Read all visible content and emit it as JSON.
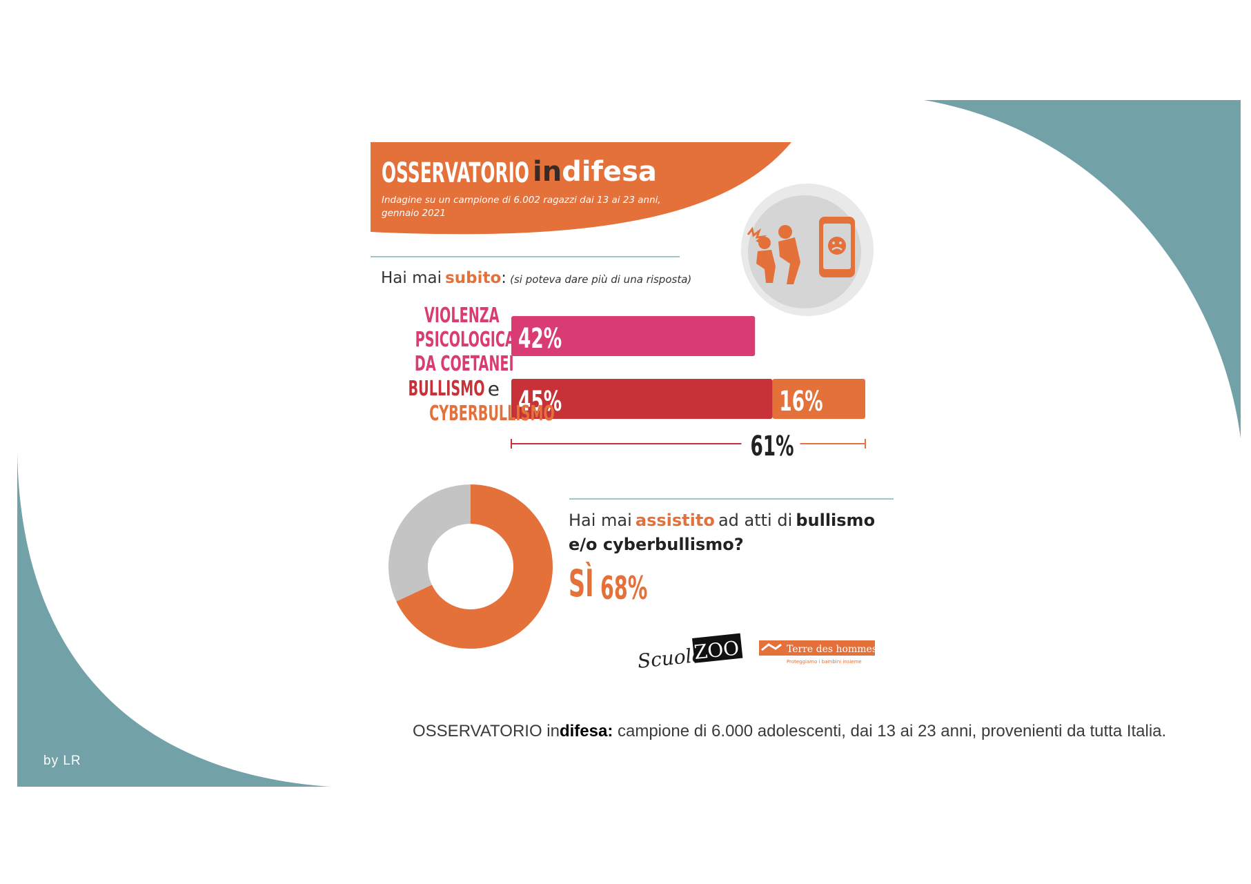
{
  "header": {
    "title_a": "OSSERVATORIO",
    "title_b": "in",
    "title_c": "difesa",
    "subtitle_line1": "Indagine su un campione di 6.002 ragazzi dai 13 ai 23 anni,",
    "subtitle_line2": "gennaio 2021"
  },
  "question1": {
    "prefix": "Hai mai",
    "keyword": "subito",
    "colon": ":",
    "note": "(si poteva dare più di una risposta)"
  },
  "question2": {
    "prefix": "Hai mai",
    "keyword": "assistito",
    "middle": "ad atti di",
    "keyword2": "bullismo",
    "line2": "e/o cyberbullismo?",
    "answer_label": "SÌ",
    "answer_value": "68%"
  },
  "logos": {
    "scuola": "Scuola",
    "zoo": "ZOO",
    "tdh": "Terre des hommes",
    "tdh_sub": "Proteggiamo i bambini insieme"
  },
  "caption": {
    "part1": "OSSERVATORIO in",
    "part2": "difesa:",
    "part3": " campione di 6.000 adolescenti, dai 13 ai 23 anni, provenienti da tutta Italia."
  },
  "byline": "by LR",
  "colors": {
    "orange": "#e4703a",
    "pink": "#d93b73",
    "red": "#c63237",
    "teal": "#72a1a8",
    "grey": "#c4c4c4"
  },
  "chart_data": [
    {
      "type": "bar",
      "orientation": "horizontal",
      "stacked": true,
      "categories": [
        [
          "VIOLENZA",
          "PSICOLOGICA",
          "DA COETANEI"
        ],
        [
          "BULLISMO",
          "CYBERBULLISMO"
        ]
      ],
      "category_joiner": "e",
      "series": [
        {
          "segment_values": [
            42,
            45
          ],
          "labels": [
            "42%",
            "45%"
          ],
          "colors": [
            "#d93b73",
            "#c63237"
          ]
        },
        {
          "segment_values": [
            null,
            16
          ],
          "labels": [
            null,
            "16%"
          ],
          "colors": [
            null,
            "#e4703a"
          ]
        }
      ],
      "total": {
        "value": 61,
        "label": "61%"
      },
      "max_value": 61
    },
    {
      "type": "pie",
      "donut": true,
      "slices": [
        {
          "label": "SÌ",
          "value": 68,
          "color": "#e4703a"
        },
        {
          "label": "",
          "value": 32,
          "color": "#c4c4c4"
        }
      ]
    }
  ]
}
